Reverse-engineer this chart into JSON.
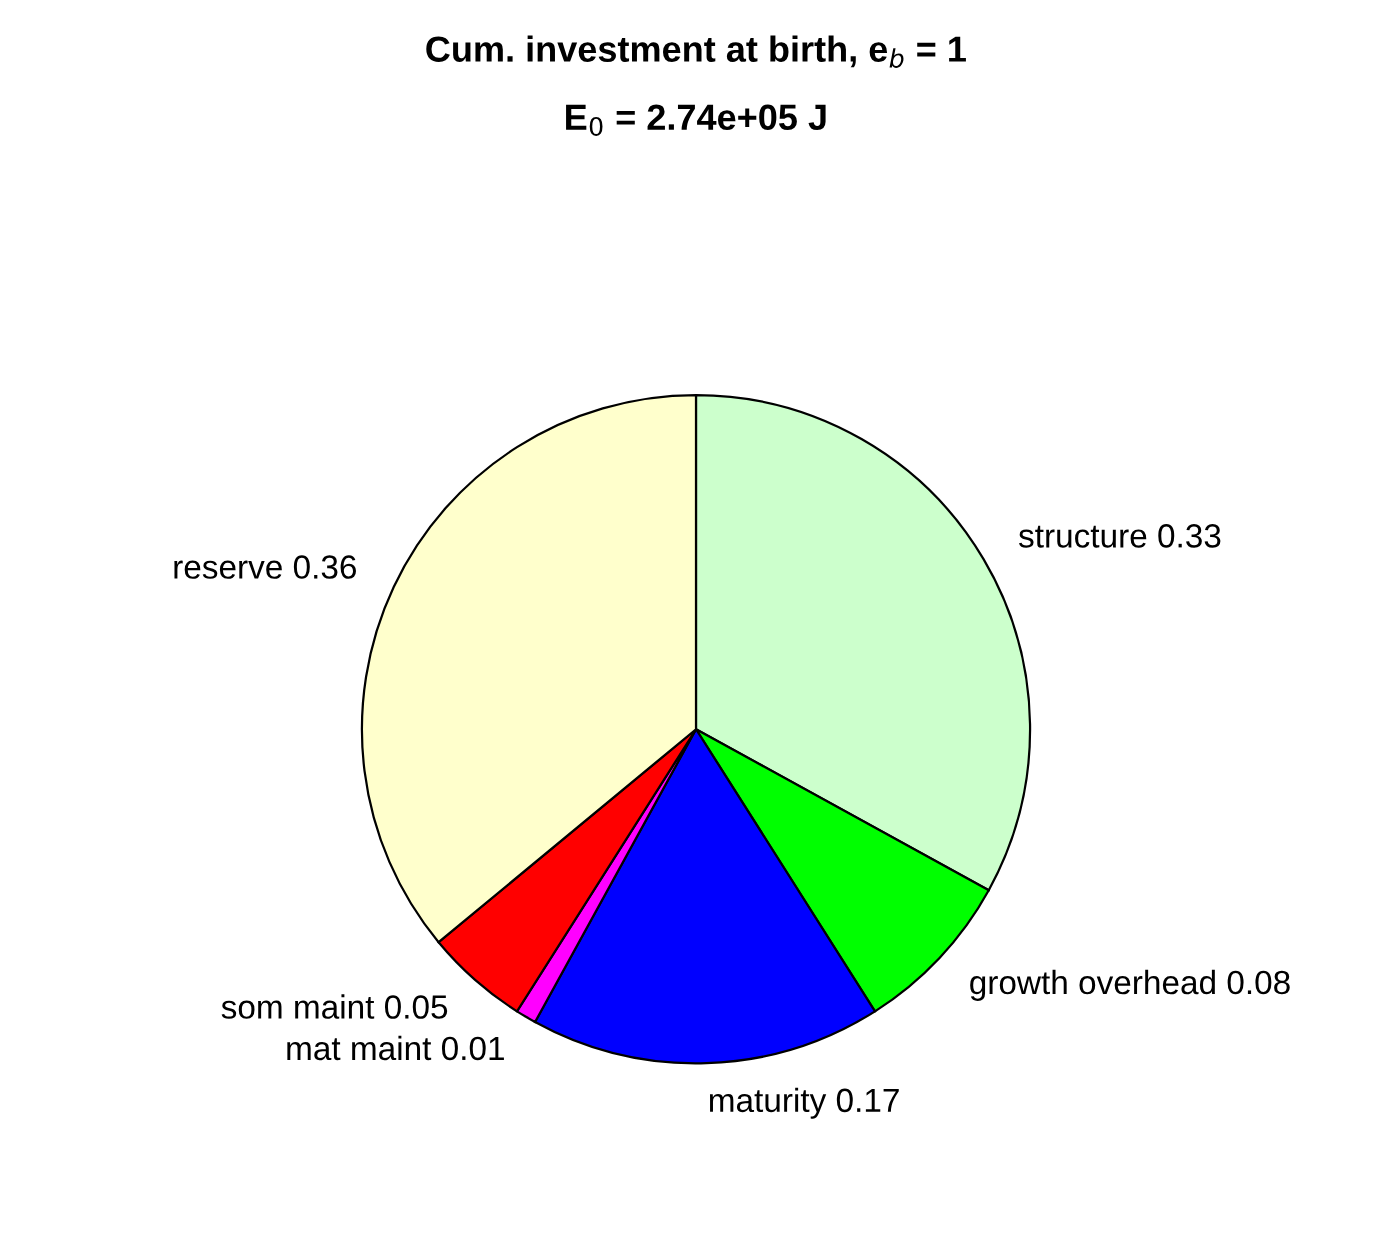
{
  "chart_data": {
    "type": "pie",
    "title": "Cum. investment at birth, e$_{b}$ = 1",
    "subtitle": "E$_{0}$ = 2.74e+05 J",
    "categories": [
      "structure 0.33",
      "growth overhead 0.08",
      "maturity 0.17",
      "mat maint 0.01",
      "som maint 0.05",
      "reserve 0.36"
    ],
    "values": [
      0.33,
      0.08,
      0.17,
      0.01,
      0.05,
      0.36
    ],
    "colors": [
      "#ccffcc",
      "#00ff00",
      "#0000ff",
      "#ff00ff",
      "#ff0000",
      "#ffffcc"
    ],
    "legend": false
  }
}
